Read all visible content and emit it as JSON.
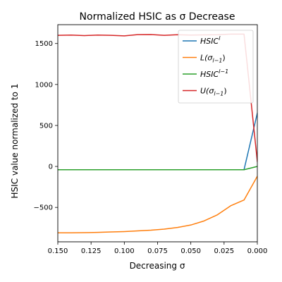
{
  "chart_data": {
    "type": "line",
    "title": "Normalized HSIC as σ Decrease",
    "xlabel": "Decreasing σ",
    "ylabel": "HSIC value normalized to 1",
    "xlim": [
      0.15,
      0.0
    ],
    "ylim": [
      -920,
      1730
    ],
    "x_reversed": true,
    "grid": false,
    "legend_position": "upper right",
    "xticks": [
      {
        "value": 0.15,
        "label": "0.150"
      },
      {
        "value": 0.125,
        "label": "0.125"
      },
      {
        "value": 0.1,
        "label": "0.100"
      },
      {
        "value": 0.075,
        "label": "0.075"
      },
      {
        "value": 0.05,
        "label": "0.050"
      },
      {
        "value": 0.025,
        "label": "0.025"
      },
      {
        "value": 0.0,
        "label": "0.000"
      }
    ],
    "yticks": [
      {
        "value": -500,
        "label": "−500"
      },
      {
        "value": 0,
        "label": "0"
      },
      {
        "value": 500,
        "label": "500"
      },
      {
        "value": 1000,
        "label": "1000"
      },
      {
        "value": 1500,
        "label": "1500"
      }
    ],
    "series": [
      {
        "name_base": "HSIC",
        "name_sup": "l",
        "name_sub": "",
        "name_suffix": "",
        "color": "#1f77b4",
        "x": [
          0.15,
          0.14,
          0.13,
          0.12,
          0.11,
          0.1,
          0.09,
          0.08,
          0.07,
          0.06,
          0.05,
          0.04,
          0.03,
          0.02,
          0.01,
          0.0
        ],
        "y": [
          -40,
          -40,
          -40,
          -40,
          -40,
          -40,
          -40,
          -40,
          -40,
          -40,
          -40,
          -40,
          -40,
          -40,
          -40,
          650
        ]
      },
      {
        "name_base": "L(σ",
        "name_sup": "",
        "name_sub": "l−1",
        "name_suffix": ")",
        "color": "#ff7f0e",
        "x": [
          0.15,
          0.14,
          0.13,
          0.12,
          0.11,
          0.1,
          0.09,
          0.08,
          0.07,
          0.06,
          0.05,
          0.04,
          0.03,
          0.02,
          0.01,
          0.0
        ],
        "y": [
          -810,
          -810,
          -808,
          -805,
          -800,
          -795,
          -787,
          -778,
          -765,
          -745,
          -715,
          -665,
          -590,
          -480,
          -410,
          -120
        ]
      },
      {
        "name_base": "HSIC",
        "name_sup": "l−1",
        "name_sub": "",
        "name_suffix": "",
        "color": "#2ca02c",
        "x": [
          0.15,
          0.14,
          0.13,
          0.12,
          0.11,
          0.1,
          0.09,
          0.08,
          0.07,
          0.06,
          0.05,
          0.04,
          0.03,
          0.02,
          0.01,
          0.0
        ],
        "y": [
          -40,
          -40,
          -40,
          -40,
          -40,
          -40,
          -40,
          -40,
          -40,
          -40,
          -40,
          -40,
          -40,
          -40,
          -40,
          0
        ]
      },
      {
        "name_base": "U(σ",
        "name_sup": "",
        "name_sub": "l−1",
        "name_suffix": ")",
        "color": "#d62728",
        "x": [
          0.15,
          0.14,
          0.13,
          0.12,
          0.11,
          0.1,
          0.09,
          0.08,
          0.07,
          0.06,
          0.05,
          0.04,
          0.03,
          0.02,
          0.01,
          0.0
        ],
        "y": [
          1600,
          1603,
          1597,
          1603,
          1600,
          1593,
          1608,
          1610,
          1600,
          1607,
          1603,
          1605,
          1607,
          1615,
          1615,
          60
        ]
      }
    ]
  }
}
